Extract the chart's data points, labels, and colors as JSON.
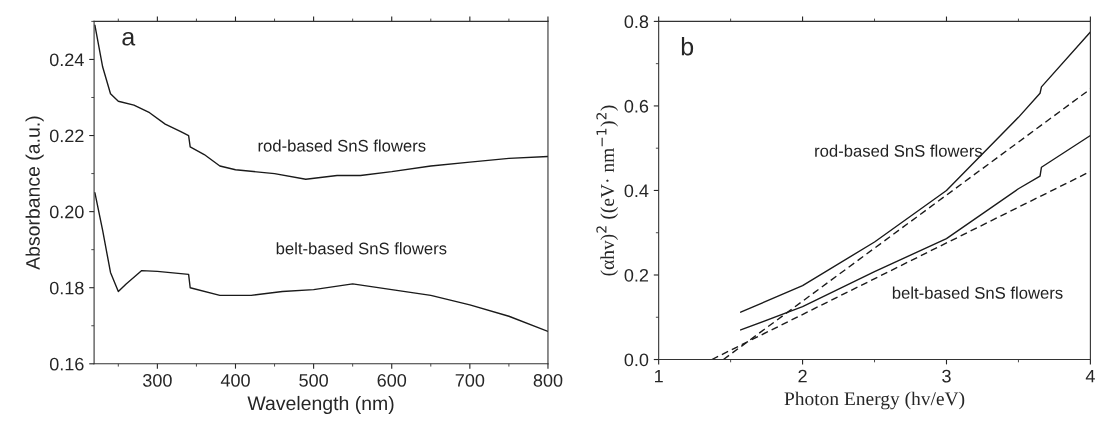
{
  "chart_data": [
    {
      "type": "line",
      "xlabel": "Wavelength (nm)",
      "ylabel": "Absorbance (a.u.)",
      "annotations": [
        "a"
      ],
      "xlim": [
        219,
        800
      ],
      "ylim": [
        0.16,
        0.25
      ],
      "xticks": [
        300,
        400,
        500,
        600,
        700,
        800
      ],
      "yticks": [
        0.16,
        0.18,
        {
          "value": 0.2,
          "label": "0.20"
        },
        0.22,
        0.24
      ],
      "grid": false,
      "legend": false,
      "series": [
        {
          "name": "rod-based SnS flowers",
          "color": "#1a1a1a",
          "x": [
            220,
            230,
            240,
            250,
            270,
            290,
            310,
            330,
            340,
            342,
            360,
            380,
            400,
            450,
            490,
            530,
            560,
            600,
            650,
            700,
            750,
            800
          ],
          "values": [
            0.249,
            0.238,
            0.231,
            0.229,
            0.228,
            0.226,
            0.223,
            0.221,
            0.22,
            0.217,
            0.215,
            0.212,
            0.211,
            0.21,
            0.2085,
            0.2095,
            0.2095,
            0.2105,
            0.212,
            0.213,
            0.214,
            0.2145
          ]
        },
        {
          "name": "belt-based SnS flowers",
          "color": "#1a1a1a",
          "x": [
            220,
            230,
            240,
            250,
            260,
            280,
            300,
            340,
            342,
            380,
            420,
            460,
            500,
            550,
            600,
            650,
            700,
            750,
            800
          ],
          "values": [
            0.205,
            0.195,
            0.184,
            0.179,
            0.181,
            0.1845,
            0.1843,
            0.1835,
            0.18,
            0.178,
            0.178,
            0.179,
            0.1795,
            0.181,
            0.1795,
            0.178,
            0.1755,
            0.1725,
            0.1685
          ]
        }
      ]
    },
    {
      "type": "line",
      "xlabel": "Photon Energy (hv/eV)",
      "ylabel": "(αhv)$^{2}$ ((eV· nm$^{−1}$)$^{2}$)",
      "annotations": [
        "b"
      ],
      "xlim": [
        1,
        4
      ],
      "ylim": [
        0,
        0.8
      ],
      "xticks": [
        1,
        2,
        3,
        4
      ],
      "yticks": [
        {
          "value": 0,
          "label": "0.0"
        },
        0.2,
        0.4,
        0.6,
        0.8
      ],
      "grid": false,
      "legend": false,
      "series": [
        {
          "name": "rod-based SnS flowers",
          "color": "#1a1a1a",
          "x": [
            1.57,
            2.0,
            2.5,
            3.0,
            3.5,
            3.65,
            3.66,
            4.0
          ],
          "values": [
            0.112,
            0.175,
            0.278,
            0.4,
            0.573,
            0.63,
            0.645,
            0.775
          ]
        },
        {
          "name": "belt-based SnS flowers",
          "color": "#1a1a1a",
          "x": [
            1.57,
            2.0,
            2.5,
            3.0,
            3.5,
            3.65,
            3.66,
            4.0
          ],
          "values": [
            0.07,
            0.125,
            0.208,
            0.286,
            0.404,
            0.434,
            0.455,
            0.53
          ]
        },
        {
          "color": "#1a1a1a",
          "line_style": "dashed",
          "x": [
            1.45,
            4.0
          ],
          "values": [
            0.0,
            0.64
          ]
        },
        {
          "color": "#1a1a1a",
          "line_style": "dashed",
          "x": [
            1.37,
            4.0
          ],
          "values": [
            0.0,
            0.445
          ]
        }
      ]
    }
  ]
}
